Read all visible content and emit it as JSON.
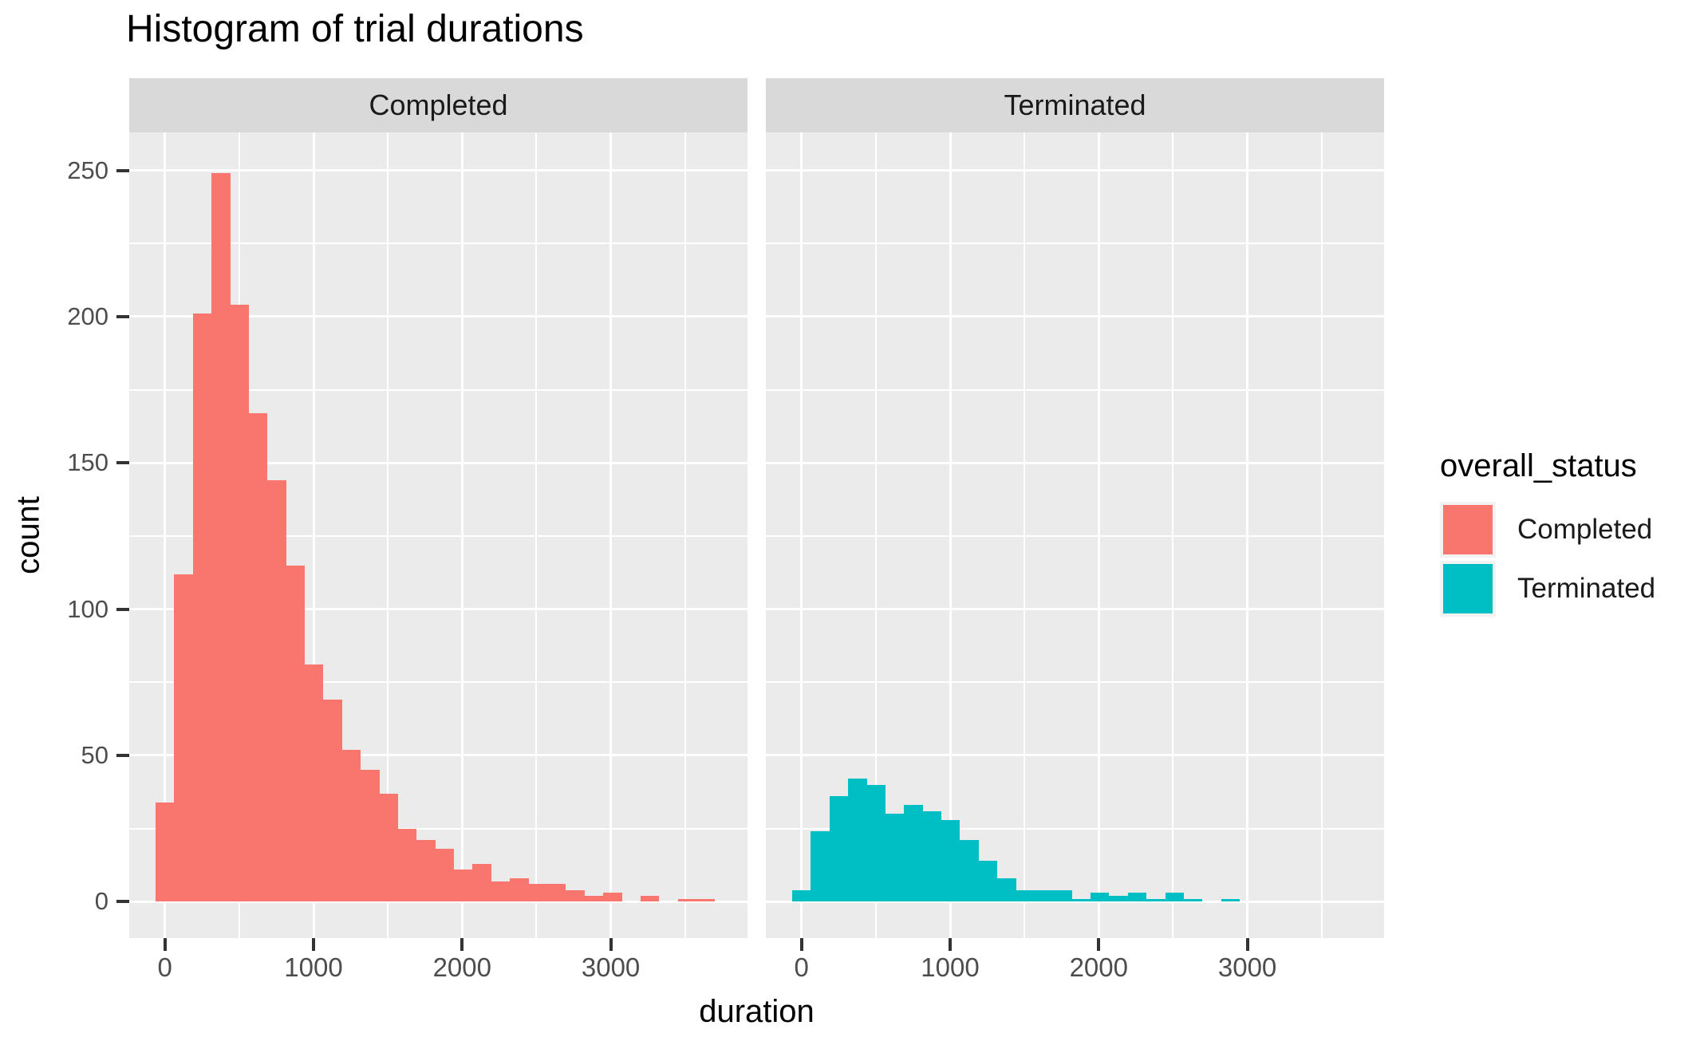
{
  "title": "Histogram of trial durations",
  "axes": {
    "x_label": "duration",
    "y_label": "count"
  },
  "facet_strips": [
    "Completed",
    "Terminated"
  ],
  "legend": {
    "title": "overall_status",
    "items": [
      {
        "label": "Completed",
        "color": "#F8766D"
      },
      {
        "label": "Terminated",
        "color": "#00BFC4"
      }
    ]
  },
  "chart_data": {
    "type": "histogram",
    "title": "Histogram of trial durations",
    "xlabel": "duration",
    "ylabel": "count",
    "facet_variable": "overall_status",
    "facets": [
      "Completed",
      "Terminated"
    ],
    "bin_start": -62.75,
    "bin_width": 125.5,
    "x_ticks": [
      0,
      1000,
      2000,
      3000
    ],
    "x_minor_ticks": [
      500,
      1500,
      2500,
      3500
    ],
    "y_ticks": [
      0,
      50,
      100,
      150,
      200,
      250
    ],
    "y_minor_ticks": [
      25,
      75,
      125,
      175,
      225
    ],
    "xlim": [
      -240,
      3920
    ],
    "ylim": [
      -12.5,
      263
    ],
    "grid": true,
    "legend_position": "right",
    "series": [
      {
        "name": "Completed",
        "color": "#F8766D",
        "counts": [
          34,
          112,
          201,
          249,
          204,
          167,
          144,
          115,
          81,
          69,
          52,
          45,
          37,
          25,
          21,
          18,
          11,
          13,
          7,
          8,
          6,
          6,
          4,
          2,
          3,
          0,
          2,
          0,
          1,
          1
        ]
      },
      {
        "name": "Terminated",
        "color": "#00BFC4",
        "counts": [
          4,
          24,
          36,
          42,
          40,
          30,
          33,
          31,
          28,
          21,
          14,
          8,
          4,
          4,
          4,
          1,
          3,
          2,
          3,
          1,
          3,
          1,
          0,
          1,
          0,
          0,
          0,
          0,
          0,
          0
        ]
      }
    ],
    "theme": {
      "panel_bg": "#EBEBEB",
      "strip_bg": "#D9D9D9",
      "grid_color": "#FFFFFF",
      "tick_label_color": "#4D4D4D",
      "tick_mark_color": "#333333",
      "text_color": "#1A1A1A"
    }
  }
}
